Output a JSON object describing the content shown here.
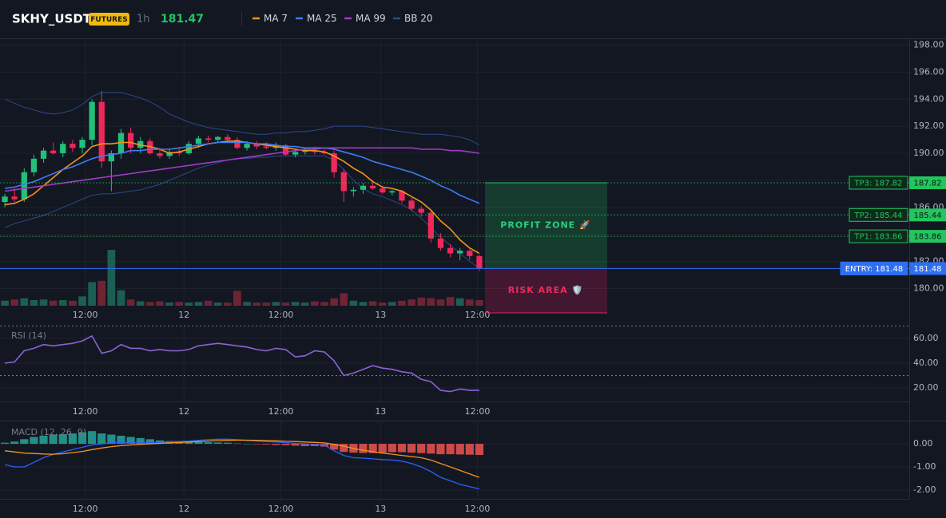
{
  "header": {
    "symbol": "SKHY_USDT",
    "badge": "FUTURES",
    "interval": "1h",
    "price": "181.47"
  },
  "chart_data": [
    {
      "type": "candlestick",
      "xlim": [
        -0.5,
        49.5
      ],
      "xticks": [
        {
          "value": 8.3,
          "label": "12:00"
        },
        {
          "value": 18.5,
          "label": "12"
        },
        {
          "value": 28.5,
          "label": "12:00"
        },
        {
          "value": 38.8,
          "label": "13"
        },
        {
          "value": 48.8,
          "label": "12:00"
        }
      ],
      "ylim": [
        178.2,
        198.5
      ],
      "yticks": [
        {
          "value": 198,
          "label": "198.00"
        },
        {
          "value": 196,
          "label": "196.00"
        },
        {
          "value": 194,
          "label": "194.00"
        },
        {
          "value": 192,
          "label": "192.00"
        },
        {
          "value": 190,
          "label": "190.00"
        },
        {
          "value": 188,
          "label": "188.00"
        },
        {
          "value": 186,
          "label": "186.00"
        },
        {
          "value": 184,
          "label": "184.00"
        },
        {
          "value": 182,
          "label": "182.00"
        },
        {
          "value": 180,
          "label": "180.00"
        }
      ],
      "grid": true,
      "up_color": "#22c07a",
      "down_color": "#f0285a",
      "volume_up_color": "#1d5e52",
      "volume_down_color": "#6e2434",
      "open": [
        186.4,
        186.8,
        186.6,
        188.6,
        189.6,
        190.2,
        190.0,
        190.7,
        190.4,
        191.0,
        193.8,
        189.4,
        190.0,
        191.5,
        190.4,
        190.9,
        190.0,
        189.8,
        190.1,
        190.0,
        190.7,
        191.1,
        191.0,
        191.2,
        191.0,
        190.4,
        190.7,
        190.5,
        190.4,
        190.6,
        189.9,
        190.1,
        190.2,
        190.1,
        190.0,
        188.6,
        187.2,
        187.3,
        187.6,
        187.4,
        187.1,
        187.2,
        186.5,
        185.9,
        185.6,
        183.7,
        183.0,
        182.6,
        182.8,
        182.4
      ],
      "high": [
        187.0,
        187.4,
        188.9,
        189.9,
        190.4,
        190.8,
        190.9,
        191.0,
        191.2,
        194.0,
        194.6,
        190.2,
        191.8,
        191.9,
        191.2,
        191.1,
        190.4,
        190.3,
        190.4,
        190.9,
        191.3,
        191.3,
        191.3,
        191.4,
        191.2,
        190.9,
        190.9,
        190.8,
        190.8,
        190.7,
        190.3,
        190.4,
        190.5,
        190.3,
        190.2,
        188.8,
        187.5,
        187.8,
        188.0,
        187.6,
        187.3,
        187.3,
        186.7,
        186.1,
        185.8,
        184.1,
        183.3,
        183.0,
        182.9,
        182.5
      ],
      "low": [
        186.0,
        186.4,
        186.4,
        188.3,
        189.3,
        189.9,
        189.7,
        190.1,
        190.0,
        190.6,
        188.9,
        187.2,
        189.6,
        190.0,
        190.0,
        189.9,
        189.6,
        189.6,
        189.8,
        189.9,
        190.4,
        190.8,
        190.8,
        190.9,
        190.3,
        190.2,
        190.3,
        190.3,
        190.2,
        189.8,
        189.7,
        189.9,
        189.9,
        189.9,
        188.2,
        186.4,
        186.8,
        187.0,
        187.3,
        187.0,
        186.9,
        186.3,
        185.7,
        185.3,
        183.4,
        182.8,
        182.3,
        182.1,
        182.1,
        181.3
      ],
      "close": [
        186.8,
        186.6,
        188.6,
        189.6,
        190.2,
        190.0,
        190.7,
        190.4,
        191.0,
        193.8,
        189.4,
        190.0,
        191.5,
        190.4,
        190.9,
        190.0,
        189.8,
        190.1,
        190.0,
        190.7,
        191.1,
        191.0,
        191.2,
        191.0,
        190.4,
        190.7,
        190.5,
        190.4,
        190.6,
        189.9,
        190.1,
        190.2,
        190.1,
        190.0,
        188.6,
        187.2,
        187.3,
        187.6,
        187.4,
        187.1,
        187.2,
        186.5,
        185.9,
        185.6,
        183.7,
        183.0,
        182.6,
        182.8,
        182.4,
        181.5
      ],
      "volume": [
        8,
        10,
        12,
        9,
        10,
        8,
        9,
        8,
        15,
        38,
        40,
        90,
        25,
        10,
        7,
        6,
        7,
        5,
        6,
        5,
        6,
        8,
        5,
        5,
        24,
        6,
        5,
        5,
        6,
        5,
        6,
        5,
        7,
        6,
        12,
        20,
        8,
        6,
        7,
        5,
        6,
        8,
        10,
        13,
        12,
        10,
        14,
        12,
        10,
        9
      ],
      "series": [
        {
          "name": "MA 7",
          "color": "#f7931a",
          "values": [
            186.2,
            186.3,
            186.6,
            187.0,
            187.6,
            188.2,
            188.8,
            189.3,
            189.8,
            190.5,
            190.7,
            190.7,
            190.8,
            190.8,
            190.6,
            190.5,
            190.3,
            190.0,
            190.1,
            190.3,
            190.5,
            190.7,
            190.8,
            190.9,
            190.9,
            190.8,
            190.7,
            190.6,
            190.5,
            190.4,
            190.3,
            190.2,
            190.2,
            190.1,
            189.8,
            189.4,
            188.9,
            188.5,
            187.9,
            187.5,
            187.4,
            187.2,
            186.8,
            186.4,
            185.8,
            185.0,
            184.4,
            183.6,
            183.0,
            182.6
          ]
        },
        {
          "name": "MA 25",
          "color": "#3d7cf5",
          "values": [
            187.4,
            187.5,
            187.7,
            187.9,
            188.2,
            188.5,
            188.8,
            189.0,
            189.3,
            189.6,
            189.8,
            189.9,
            190.0,
            190.2,
            190.2,
            190.3,
            190.3,
            190.3,
            190.4,
            190.5,
            190.6,
            190.7,
            190.8,
            190.8,
            190.8,
            190.8,
            190.7,
            190.7,
            190.6,
            190.5,
            190.5,
            190.4,
            190.4,
            190.4,
            190.3,
            190.1,
            189.9,
            189.7,
            189.4,
            189.2,
            189.0,
            188.8,
            188.6,
            188.3,
            188.0,
            187.6,
            187.3,
            186.9,
            186.6,
            186.3
          ]
        },
        {
          "name": "MA 99",
          "color": "#a13bc4",
          "values": [
            187.2,
            187.3,
            187.4,
            187.5,
            187.6,
            187.7,
            187.8,
            187.9,
            188.0,
            188.1,
            188.2,
            188.3,
            188.4,
            188.5,
            188.6,
            188.7,
            188.8,
            188.9,
            189.0,
            189.1,
            189.2,
            189.3,
            189.4,
            189.5,
            189.6,
            189.7,
            189.8,
            189.9,
            190.0,
            190.1,
            190.2,
            190.3,
            190.3,
            190.4,
            190.4,
            190.4,
            190.4,
            190.4,
            190.4,
            190.4,
            190.4,
            190.4,
            190.4,
            190.3,
            190.3,
            190.3,
            190.2,
            190.2,
            190.1,
            190.0
          ]
        },
        {
          "name": "BB 20",
          "color": "#2b4a8c",
          "upper": [
            194.0,
            193.7,
            193.4,
            193.2,
            193.0,
            192.9,
            193.0,
            193.2,
            193.6,
            194.2,
            194.5,
            194.5,
            194.5,
            194.3,
            194.1,
            193.8,
            193.4,
            192.9,
            192.6,
            192.3,
            192.1,
            191.9,
            191.8,
            191.7,
            191.6,
            191.5,
            191.4,
            191.4,
            191.5,
            191.5,
            191.6,
            191.6,
            191.7,
            191.8,
            192.0,
            192.0,
            192.0,
            192.0,
            191.9,
            191.8,
            191.7,
            191.6,
            191.5,
            191.4,
            191.4,
            191.4,
            191.3,
            191.2,
            191.0,
            190.6
          ],
          "lower": [
            184.5,
            184.8,
            185.0,
            185.2,
            185.4,
            185.7,
            186.0,
            186.3,
            186.6,
            186.9,
            187.0,
            187.0,
            187.1,
            187.2,
            187.3,
            187.5,
            187.7,
            188.0,
            188.3,
            188.6,
            188.9,
            189.1,
            189.3,
            189.5,
            189.6,
            189.6,
            189.7,
            189.7,
            189.8,
            189.8,
            189.8,
            189.8,
            189.8,
            189.8,
            189.5,
            188.8,
            188.0,
            187.4,
            187.0,
            186.8,
            186.5,
            186.2,
            185.8,
            185.2,
            184.5,
            183.8,
            183.2,
            182.6,
            182.0,
            181.5
          ]
        }
      ],
      "levels": [
        {
          "name": "TP3: 187.82",
          "price": {
            "value": 187.82,
            "label": "187.82"
          },
          "color": "#22c55e"
        },
        {
          "name": "TP2: 185.44",
          "price": {
            "value": 185.44,
            "label": "185.44"
          },
          "color": "#22c55e"
        },
        {
          "name": "TP1: 183.86",
          "price": {
            "value": 183.86,
            "label": "183.86"
          },
          "color": "#22c55e"
        },
        {
          "name": "ENTRY: 181.48",
          "price": {
            "value": 181.48,
            "label": "181.48"
          },
          "color": "#2e6ff2"
        }
      ],
      "zones": [
        {
          "label": "PROFIT ZONE 🚀",
          "from": 181.48,
          "to": 187.82,
          "color": "#22c55e",
          "text_color": "#2ad07f"
        },
        {
          "label": "RISK AREA 🛡️",
          "from": 178.2,
          "to": 181.48,
          "color": "#e91e63",
          "text_color": "#f0285a"
        }
      ]
    },
    {
      "type": "line",
      "title": "RSI (14)",
      "color": "#8a63d2",
      "ylim": [
        9,
        70.3
      ],
      "yticks": [
        {
          "value": 60,
          "label": "60.00"
        },
        {
          "value": 40,
          "label": "40.00"
        },
        {
          "value": 20,
          "label": "20.00"
        }
      ],
      "levels": [
        70,
        30
      ],
      "values": [
        40,
        41,
        50,
        52,
        55,
        54,
        55,
        56,
        58,
        62,
        48,
        50,
        55,
        52,
        52,
        50,
        51,
        50,
        50,
        51,
        54,
        55,
        56,
        55,
        54,
        53,
        51,
        50,
        52,
        51,
        45,
        46,
        50,
        49,
        42,
        30,
        32,
        35,
        38,
        36,
        35,
        33,
        32,
        27,
        25,
        18,
        17,
        19,
        18,
        18
      ]
    },
    {
      "type": "macd",
      "title": "MACD (12, 26, 9)",
      "ylim": [
        -2.38,
        0.97
      ],
      "yticks": [
        {
          "value": 0,
          "label": "0.00"
        },
        {
          "value": -1,
          "label": "-1.00"
        },
        {
          "value": -2,
          "label": "-2.00"
        }
      ],
      "up_color": "#26a69a",
      "down_color": "#ef5350",
      "macd_color": "#2962ff",
      "signal_color": "#f7931a",
      "histogram": [
        0.05,
        0.1,
        0.2,
        0.3,
        0.35,
        0.4,
        0.42,
        0.45,
        0.5,
        0.55,
        0.45,
        0.4,
        0.35,
        0.3,
        0.25,
        0.2,
        0.15,
        0.12,
        0.1,
        0.1,
        0.08,
        0.07,
        0.06,
        0.05,
        0.02,
        0.0,
        -0.02,
        -0.03,
        -0.05,
        -0.06,
        -0.08,
        -0.1,
        -0.1,
        -0.12,
        -0.25,
        -0.35,
        -0.38,
        -0.4,
        -0.4,
        -0.38,
        -0.36,
        -0.36,
        -0.38,
        -0.4,
        -0.42,
        -0.45,
        -0.45,
        -0.46,
        -0.47,
        -0.48
      ],
      "macd": [
        -0.9,
        -1.0,
        -1.0,
        -0.8,
        -0.6,
        -0.45,
        -0.35,
        -0.25,
        -0.15,
        -0.05,
        0.0,
        0.05,
        0.05,
        0.05,
        0.05,
        0.05,
        0.05,
        0.1,
        0.1,
        0.12,
        0.15,
        0.18,
        0.2,
        0.2,
        0.18,
        0.15,
        0.12,
        0.1,
        0.08,
        0.05,
        0.02,
        0.0,
        -0.02,
        -0.05,
        -0.3,
        -0.5,
        -0.6,
        -0.62,
        -0.65,
        -0.68,
        -0.7,
        -0.75,
        -0.85,
        -1.0,
        -1.2,
        -1.45,
        -1.6,
        -1.75,
        -1.85,
        -1.95
      ],
      "signal": [
        -0.3,
        -0.35,
        -0.4,
        -0.42,
        -0.44,
        -0.45,
        -0.43,
        -0.38,
        -0.33,
        -0.25,
        -0.18,
        -0.12,
        -0.08,
        -0.05,
        -0.02,
        0.0,
        0.02,
        0.04,
        0.06,
        0.08,
        0.1,
        0.12,
        0.14,
        0.15,
        0.16,
        0.16,
        0.15,
        0.14,
        0.13,
        0.11,
        0.1,
        0.08,
        0.06,
        0.04,
        -0.02,
        -0.1,
        -0.2,
        -0.28,
        -0.34,
        -0.4,
        -0.45,
        -0.5,
        -0.55,
        -0.6,
        -0.7,
        -0.85,
        -1.0,
        -1.15,
        -1.3,
        -1.45
      ]
    }
  ]
}
